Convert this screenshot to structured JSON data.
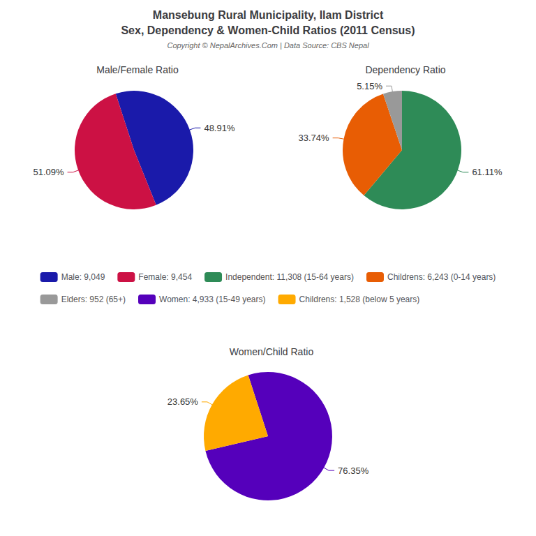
{
  "title": "Mansebung Rural Municipality, Ilam District",
  "subtitle": "Sex, Dependency & Women-Child Ratios (2011 Census)",
  "annotations": [
    "Copyright © NepalArchives.Com | Data Source: CBS Nepal"
  ],
  "legend": "center",
  "chart_data": [
    {
      "type": "pie",
      "title": "Male/Female Ratio",
      "categories": [
        "Male: 9,049",
        "Female: 9,454"
      ],
      "values": [
        48.91,
        51.09
      ],
      "value_labels": [
        "48.91%",
        "51.09%"
      ],
      "colors": [
        "#1a1aaa",
        "#cc1144"
      ],
      "data_labels": true
    },
    {
      "type": "pie",
      "title": "Dependency Ratio",
      "categories": [
        "Independent: 11,308 (15-64 years)",
        "Childrens: 6,243 (0-14 years)",
        "Elders: 952 (65+)"
      ],
      "values": [
        61.11,
        33.74,
        5.15
      ],
      "value_labels": [
        "61.11%",
        "33.74%",
        "5.15%"
      ],
      "colors": [
        "#2e8b57",
        "#e85d04",
        "#999999"
      ],
      "data_labels": true
    },
    {
      "type": "pie",
      "title": "Women/Child Ratio",
      "categories": [
        "Women: 4,933 (15-49 years)",
        "Childrens: 1,528 (below 5 years)"
      ],
      "values": [
        76.35,
        23.65
      ],
      "value_labels": [
        "76.35%",
        "23.65%"
      ],
      "colors": [
        "#5500bb",
        "#ffaa00"
      ],
      "data_labels": true
    }
  ]
}
